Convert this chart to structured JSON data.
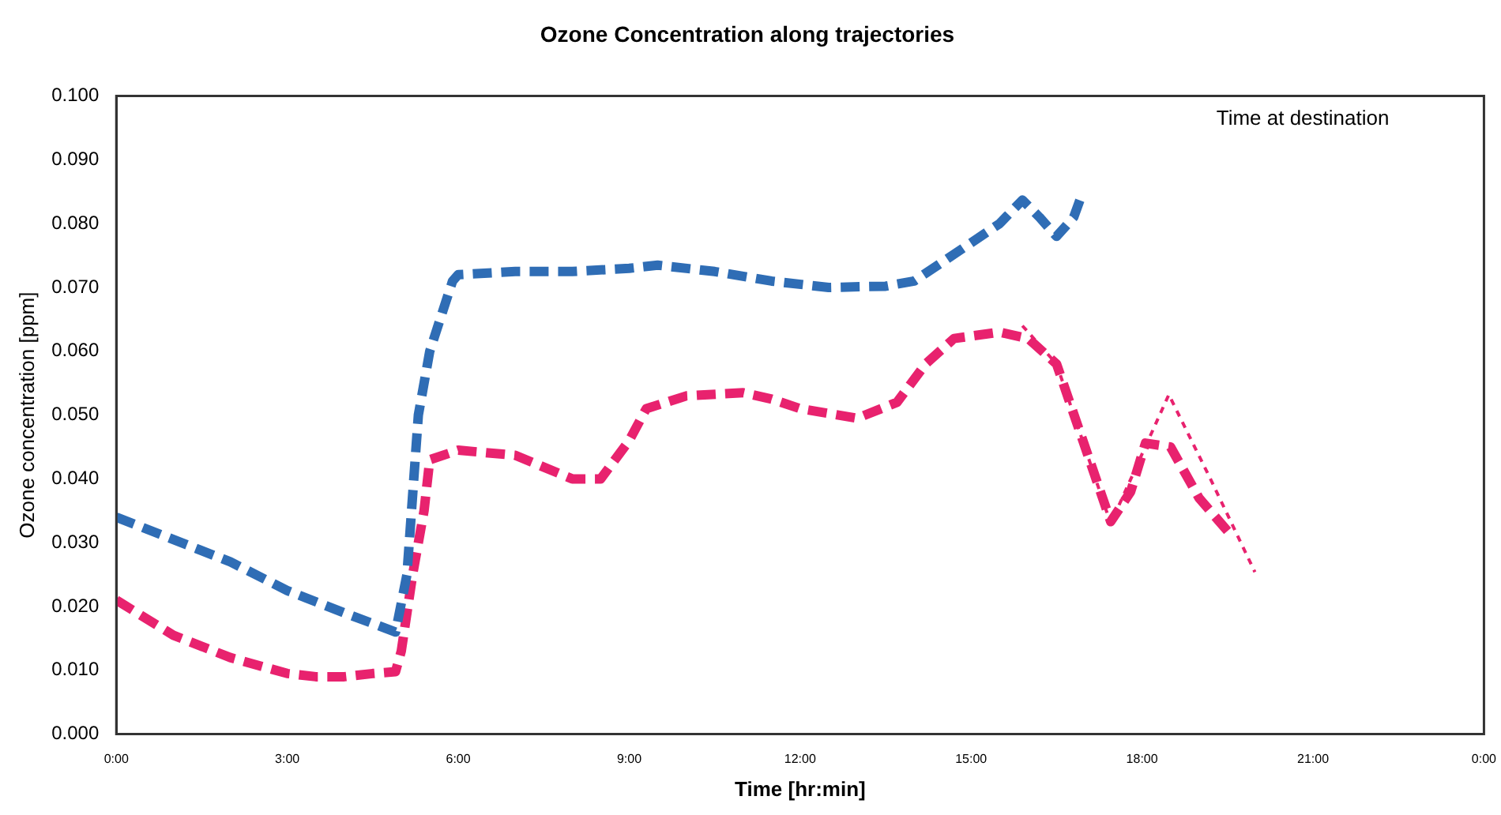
{
  "chart_data": {
    "type": "line",
    "title": "Ozone Concentration along trajectories",
    "xlabel": "Time [hr:min]",
    "ylabel": "Ozone concentration [ppm]",
    "annotations": [
      "Time at destination"
    ],
    "xlim": [
      0,
      24
    ],
    "xticks": [
      {
        "value": 0,
        "label": "0:00"
      },
      {
        "value": 3,
        "label": "3:00"
      },
      {
        "value": 6,
        "label": "6:00"
      },
      {
        "value": 9,
        "label": "9:00"
      },
      {
        "value": 12,
        "label": "12:00"
      },
      {
        "value": 15,
        "label": "15:00"
      },
      {
        "value": 18,
        "label": "18:00"
      },
      {
        "value": 21,
        "label": "21:00"
      },
      {
        "value": 24,
        "label": "0:00"
      }
    ],
    "ylim": [
      0,
      0.1
    ],
    "yticks": [
      {
        "value": 0,
        "label": "0.000"
      },
      {
        "value": 0.01,
        "label": "0.010"
      },
      {
        "value": 0.02,
        "label": "0.020"
      },
      {
        "value": 0.03,
        "label": "0.030"
      },
      {
        "value": 0.04,
        "label": "0.040"
      },
      {
        "value": 0.05,
        "label": "0.050"
      },
      {
        "value": 0.06,
        "label": "0.060"
      },
      {
        "value": 0.07,
        "label": "0.070"
      },
      {
        "value": 0.08,
        "label": "0.080"
      },
      {
        "value": 0.09,
        "label": "0.090"
      },
      {
        "value": 0.1,
        "label": "0.100"
      }
    ],
    "grid": false,
    "legend": false,
    "marker": "none",
    "series": [
      {
        "color": "#2f6db5",
        "line_style": "dashed",
        "x": [
          0,
          1,
          2,
          3,
          4,
          4.9,
          5.1,
          5.3,
          5.5,
          5.9,
          6,
          7,
          8,
          9,
          9.5,
          10.5,
          11.5,
          12.5,
          13.5,
          14,
          14.5,
          15,
          15.5,
          15.9,
          16.2,
          16.5,
          16.8,
          16.95
        ],
        "values": [
          0.034,
          0.0305,
          0.027,
          0.0225,
          0.019,
          0.016,
          0.025,
          0.05,
          0.06,
          0.071,
          0.072,
          0.0725,
          0.0725,
          0.073,
          0.0735,
          0.0725,
          0.071,
          0.07,
          0.0702,
          0.071,
          0.074,
          0.077,
          0.08,
          0.0837,
          0.081,
          0.078,
          0.081,
          0.0847
        ]
      },
      {
        "color": "#e8226e",
        "line_style": "dashed",
        "x": [
          0,
          1,
          2,
          3,
          3.5,
          4,
          4.5,
          4.9,
          5,
          5.2,
          5.4,
          5.5,
          6,
          7,
          8,
          8.5,
          9,
          9.3,
          10,
          11,
          11.5,
          12,
          13,
          13.7,
          14.2,
          14.7,
          15.5,
          16,
          16.5,
          17,
          17.45,
          17.8,
          18.06,
          18.5,
          19,
          19.6
        ],
        "values": [
          0.021,
          0.0155,
          0.012,
          0.0095,
          0.009,
          0.009,
          0.0095,
          0.0098,
          0.013,
          0.025,
          0.035,
          0.043,
          0.0445,
          0.0437,
          0.04,
          0.04,
          0.046,
          0.051,
          0.053,
          0.0535,
          0.0525,
          0.051,
          0.0495,
          0.052,
          0.058,
          0.062,
          0.063,
          0.062,
          0.058,
          0.045,
          0.0333,
          0.038,
          0.0456,
          0.045,
          0.037,
          0.0308
        ]
      },
      {
        "color": "#e8226e",
        "line_style": "dotted",
        "x": [
          15.9,
          16.5,
          17.45,
          18.47,
          19.2,
          19.98
        ],
        "values": [
          0.064,
          0.058,
          0.033,
          0.0532,
          0.04,
          0.0254
        ]
      }
    ]
  }
}
